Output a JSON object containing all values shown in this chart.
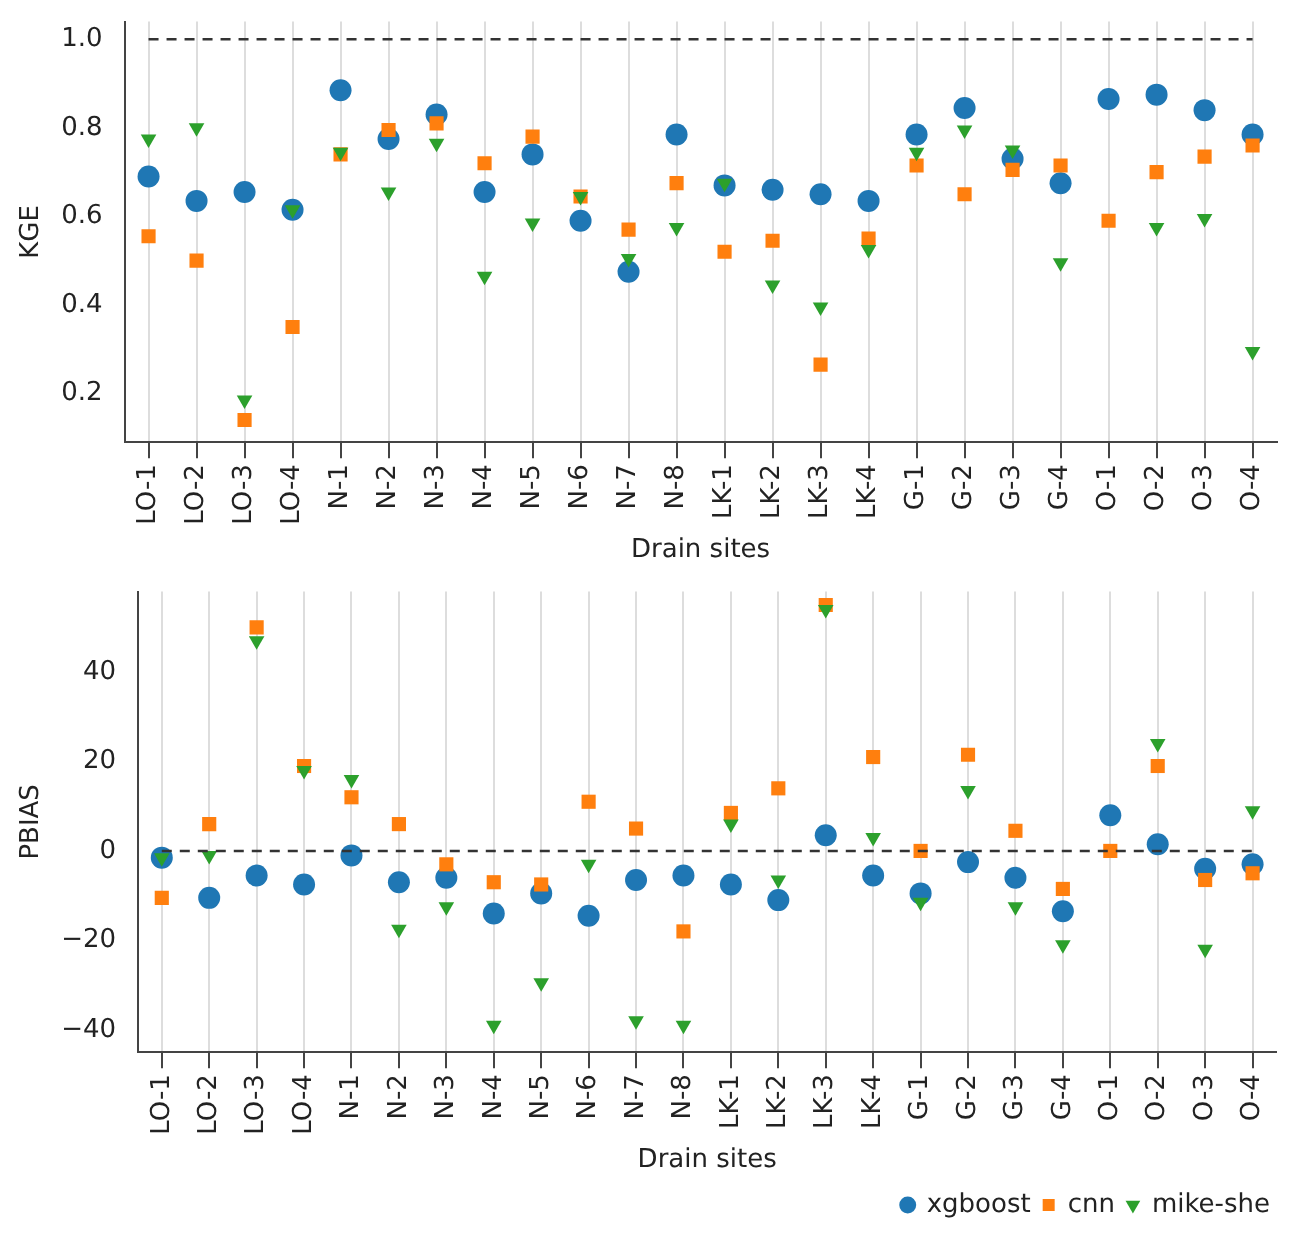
{
  "chart_data": [
    {
      "type": "scatter",
      "xlabel": "Drain sites",
      "ylabel": "KGE",
      "categories": [
        "LO-1",
        "LO-2",
        "LO-3",
        "LO-4",
        "N-1",
        "N-2",
        "N-3",
        "N-4",
        "N-5",
        "N-6",
        "N-7",
        "N-8",
        "LK-1",
        "LK-2",
        "LK-3",
        "LK-4",
        "G-1",
        "G-2",
        "G-3",
        "G-4",
        "O-1",
        "O-2",
        "O-3",
        "O-4"
      ],
      "series": [
        {
          "color": "#1f77b4",
          "marker": "circle",
          "values": [
            0.69,
            0.635,
            0.655,
            0.615,
            0.885,
            0.775,
            0.83,
            0.655,
            0.74,
            0.59,
            0.475,
            0.785,
            0.67,
            0.66,
            0.65,
            0.635,
            0.785,
            0.845,
            0.73,
            0.675,
            0.865,
            0.875,
            0.84,
            0.785
          ]
        },
        {
          "color": "#ff7f0e",
          "marker": "square",
          "values": [
            0.555,
            0.5,
            0.14,
            0.35,
            0.74,
            0.795,
            0.81,
            0.72,
            0.78,
            0.645,
            0.57,
            0.675,
            0.52,
            0.545,
            0.265,
            0.55,
            0.715,
            0.65,
            0.705,
            0.715,
            0.59,
            0.7,
            0.735,
            0.76
          ]
        },
        {
          "color": "#2ca02c",
          "marker": "triangle",
          "values": [
            0.775,
            0.8,
            0.185,
            0.615,
            0.745,
            0.655,
            0.765,
            0.465,
            0.585,
            0.645,
            0.505,
            0.575,
            0.675,
            0.445,
            0.395,
            0.525,
            0.745,
            0.795,
            0.75,
            0.495,
            null,
            0.575,
            0.595,
            0.295
          ]
        }
      ],
      "ylim": [
        0.09,
        1.04
      ],
      "yticks": [
        0.2,
        0.4,
        0.6,
        0.8,
        {
          "value": 1,
          "label": "1.0"
        }
      ],
      "grid": "x",
      "legend": false,
      "ref_lines": [
        {
          "axis": "y",
          "value": 1,
          "color": "#333333",
          "line_style": "dashed"
        }
      ]
    },
    {
      "type": "scatter",
      "xlabel": "Drain sites",
      "ylabel": "PBIAS",
      "categories": [
        "LO-1",
        "LO-2",
        "LO-3",
        "LO-4",
        "N-1",
        "N-2",
        "N-3",
        "N-4",
        "N-5",
        "N-6",
        "N-7",
        "N-8",
        "LK-1",
        "LK-2",
        "LK-3",
        "LK-4",
        "G-1",
        "G-2",
        "G-3",
        "G-4",
        "O-1",
        "O-2",
        "O-3",
        "O-4"
      ],
      "series": [
        {
          "name": "xgboost",
          "color": "#1f77b4",
          "marker": "circle",
          "values": [
            -1.5,
            -10.5,
            -5.5,
            -7.5,
            -1,
            -7,
            -6,
            -14,
            -9.5,
            -14.5,
            -6.5,
            -5.5,
            -7.5,
            -11,
            3.5,
            -5.5,
            -9.5,
            -2.5,
            -6,
            -13.5,
            8,
            1.5,
            -4,
            -3
          ]
        },
        {
          "name": "cnn",
          "color": "#ff7f0e",
          "marker": "square",
          "values": [
            -10.5,
            6,
            50,
            19,
            12,
            6,
            -3,
            -7,
            -7.5,
            11,
            5,
            -18,
            8.5,
            14,
            55,
            21,
            0,
            21.5,
            4.5,
            -8.5,
            0,
            19,
            -6.5,
            -5
          ]
        },
        {
          "name": "mike-she",
          "color": "#2ca02c",
          "marker": "triangle",
          "values": [
            -1.5,
            -1,
            47,
            18,
            16,
            -17.5,
            -12.5,
            -39,
            -29.5,
            -3,
            -38,
            -39,
            6,
            -6.5,
            54,
            3,
            -11.5,
            13.5,
            -12.5,
            -21,
            null,
            24,
            -22,
            9
          ]
        }
      ],
      "ylim": [
        -45,
        58
      ],
      "yticks": [
        {
          "value": -40,
          "label": "−40"
        },
        {
          "value": -20,
          "label": "−20"
        },
        0,
        20,
        40
      ],
      "grid": "x",
      "legend": "bottom right",
      "ref_lines": [
        {
          "axis": "y",
          "value": 0,
          "color": "#333333",
          "line_style": "dashed"
        }
      ]
    }
  ]
}
